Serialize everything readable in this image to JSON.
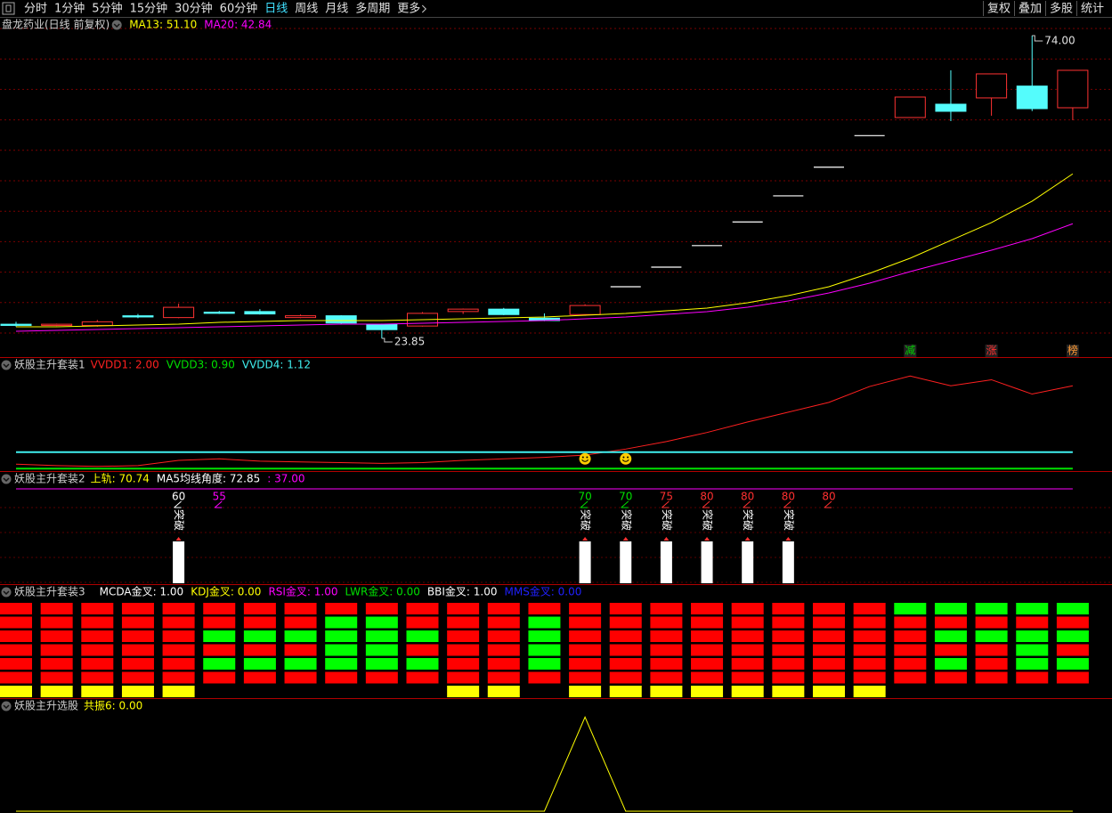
{
  "toolbar": {
    "tabs": [
      "分时",
      "1分钟",
      "5分钟",
      "15分钟",
      "30分钟",
      "60分钟",
      "日线",
      "周线",
      "月线",
      "多周期",
      "更多"
    ],
    "active": 6,
    "right": [
      "复权",
      "叠加",
      "多股",
      "统计"
    ]
  },
  "chart_data": [
    {
      "type": "candlestick",
      "title": "盘龙药业(日线 前复权)",
      "open": [
        26.2,
        26.0,
        26.0,
        27.6,
        27.3,
        28.2,
        28.3,
        27.3,
        27.6,
        26.2,
        25.9,
        28.3,
        28.7,
        27.2,
        27.8,
        32.41,
        35.65,
        39.22,
        43.14,
        47.46,
        52.21,
        57.43,
        60.43,
        62.64,
        63.68,
        65.64,
        62.05
      ],
      "close": [
        26.0,
        26.2,
        26.6,
        27.4,
        29.0,
        28.0,
        27.9,
        27.6,
        26.4,
        25.3,
        28.0,
        28.7,
        27.8,
        26.8,
        29.3,
        32.41,
        35.65,
        39.22,
        43.14,
        47.46,
        52.21,
        57.43,
        63.82,
        61.46,
        67.66,
        61.9,
        68.25
      ],
      "high": [
        26.6,
        26.3,
        26.9,
        27.9,
        29.6,
        28.4,
        28.7,
        27.8,
        27.7,
        26.3,
        28.2,
        28.8,
        28.9,
        28.0,
        29.5,
        32.41,
        35.65,
        39.22,
        43.14,
        47.46,
        52.21,
        57.43,
        63.82,
        68.25,
        67.66,
        74.0,
        68.25
      ],
      "low": [
        25.8,
        25.9,
        25.8,
        27.2,
        27.2,
        27.9,
        27.8,
        27.2,
        26.3,
        23.85,
        25.8,
        27.9,
        27.7,
        26.7,
        27.6,
        32.41,
        35.65,
        39.22,
        43.14,
        47.46,
        52.21,
        57.43,
        60.43,
        59.84,
        60.73,
        61.5,
        59.99
      ],
      "up_color": "#ff3232",
      "down_color": "#54fcfc",
      "flat_color": "#ffffff",
      "series": [
        {
          "name": "MA13: 51.10",
          "color": "#ffff00",
          "values": [
            25.77,
            25.77,
            25.92,
            26.06,
            26.21,
            26.51,
            26.65,
            26.8,
            26.8,
            26.8,
            26.95,
            27.1,
            27.24,
            27.39,
            27.69,
            27.98,
            28.42,
            28.87,
            29.75,
            30.93,
            32.41,
            34.62,
            37.13,
            40.08,
            43.03,
            46.57,
            51.1
          ]
        },
        {
          "name": "MA20: 42.84",
          "color": "#ff00ff",
          "values": [
            25.03,
            25.18,
            25.33,
            25.47,
            25.62,
            25.77,
            25.92,
            26.06,
            26.21,
            26.21,
            26.36,
            26.51,
            26.65,
            26.8,
            27.1,
            27.39,
            27.83,
            28.28,
            29.01,
            30.05,
            31.37,
            33.0,
            34.91,
            36.68,
            38.45,
            40.37,
            42.84
          ]
        }
      ],
      "annotations": [
        {
          "value": 74.0,
          "label": "74.00"
        },
        {
          "value": 23.85,
          "label": "23.85"
        }
      ],
      "marker_texts": [
        null,
        null,
        null,
        null,
        null,
        null,
        null,
        null,
        null,
        null,
        null,
        null,
        null,
        null,
        null,
        null,
        null,
        null,
        null,
        null,
        null,
        null,
        "减",
        null,
        "涨",
        null,
        "榜"
      ],
      "marker_colors": [
        null,
        null,
        null,
        null,
        null,
        null,
        null,
        null,
        null,
        null,
        null,
        null,
        null,
        null,
        null,
        null,
        null,
        null,
        null,
        null,
        null,
        null,
        "#00d000",
        null,
        "#ff3030",
        null,
        "#ff9933"
      ],
      "ylim": [
        21.2,
        76.65
      ],
      "grid": true
    },
    {
      "type": "line",
      "title": "妖股主升套装1",
      "series": [
        {
          "name": "VVDD1: 2.00",
          "color": "#ff2020",
          "values": [
            0.96,
            0.94,
            0.93,
            0.94,
            1.01,
            1.03,
            1.0,
            0.99,
            0.98,
            0.97,
            0.98,
            1.01,
            1.03,
            1.05,
            1.08,
            1.16,
            1.26,
            1.38,
            1.52,
            1.65,
            1.78,
            1.99,
            2.13,
            2.0,
            2.08,
            1.89,
            2.0
          ]
        },
        {
          "name": "VVDD3: 0.90",
          "color": "#00e000",
          "values": [
            0.9,
            0.9,
            0.9,
            0.9,
            0.9,
            0.9,
            0.9,
            0.9,
            0.9,
            0.9,
            0.9,
            0.9,
            0.9,
            0.9,
            0.9,
            0.9,
            0.9,
            0.9,
            0.9,
            0.9,
            0.9,
            0.9,
            0.9,
            0.9,
            0.9,
            0.9,
            0.9
          ]
        },
        {
          "name": "VVDD4: 1.12",
          "color": "#40f0f0",
          "values": [
            1.12,
            1.12,
            1.12,
            1.12,
            1.12,
            1.12,
            1.12,
            1.12,
            1.12,
            1.12,
            1.12,
            1.12,
            1.12,
            1.12,
            1.12,
            1.12,
            1.12,
            1.12,
            1.12,
            1.12,
            1.12,
            1.12,
            1.12,
            1.12,
            1.12,
            1.12,
            1.12
          ]
        }
      ],
      "smiles": [
        null,
        null,
        null,
        null,
        null,
        null,
        null,
        null,
        null,
        null,
        null,
        null,
        null,
        null,
        1.03,
        1.03,
        null,
        null,
        null,
        null,
        null,
        null,
        null,
        null,
        null,
        null,
        null
      ],
      "ylim": [
        0.88,
        2.18
      ]
    },
    {
      "type": "bar",
      "title": "妖股主升套装2",
      "legend": [
        {
          "text": "上轨: 70.74",
          "color": "#ffff00"
        },
        {
          "text": "MA5均线角度: 72.85",
          "color": "#ffffff"
        }
      ],
      "values": [
        null,
        null,
        null,
        null,
        1,
        null,
        null,
        null,
        null,
        null,
        null,
        null,
        null,
        null,
        1,
        1,
        1,
        1,
        1,
        1,
        null,
        null,
        null,
        null,
        null,
        null,
        null
      ],
      "color": "#ffffff",
      "ylim": [
        0,
        2.34
      ],
      "bar_text": "突破",
      "signal_values": [
        null,
        null,
        null,
        null,
        60,
        55,
        null,
        null,
        null,
        null,
        null,
        null,
        null,
        null,
        70,
        70,
        75,
        80,
        80,
        80,
        80,
        null,
        null,
        null,
        null,
        null,
        null
      ],
      "signal_colors": [
        null,
        null,
        null,
        null,
        "#ffffff",
        "#ff00ff",
        null,
        null,
        null,
        null,
        null,
        null,
        null,
        null,
        "#00e000",
        "#00e000",
        "#ff3030",
        "#ff3030",
        "#ff3030",
        "#ff3030",
        "#ff3030",
        null,
        null,
        null,
        null,
        null,
        null
      ],
      "series": [
        {
          "name": ": 37.00",
          "color": "#ff00ff",
          "axis": "y2",
          "values": [
            37,
            37,
            37,
            37,
            37,
            37,
            37,
            37,
            37,
            37,
            37,
            37,
            37,
            37,
            37,
            37,
            37,
            37,
            37,
            37,
            37,
            37,
            37,
            37,
            37,
            37,
            37
          ]
        }
      ],
      "y2lim": [
        0,
        38.4
      ],
      "grid": true
    },
    {
      "type": "heatmap",
      "title": "妖股主升套装3",
      "legend": [
        {
          "text": "MCDA金叉: 1.00",
          "color": "#ffffff"
        },
        {
          "text": "KDJ金叉: 0.00",
          "color": "#ffff00"
        },
        {
          "text": "RSI金叉: 1.00",
          "color": "#ff00ff"
        },
        {
          "text": "LWR金叉: 0.00",
          "color": "#00e000"
        },
        {
          "text": "BBI金叉: 1.00",
          "color": "#ffffff"
        },
        {
          "text": "MMS金叉: 0.00",
          "color": "#2020ff"
        }
      ],
      "cells": [
        [
          0,
          0,
          0,
          0,
          0,
          0,
          0,
          0,
          0,
          0,
          0,
          0,
          0,
          0,
          0,
          0,
          0,
          0,
          0,
          0,
          0,
          0,
          1,
          1,
          1,
          1,
          1
        ],
        [
          0,
          0,
          0,
          0,
          0,
          0,
          0,
          0,
          1,
          1,
          0,
          0,
          0,
          1,
          0,
          0,
          0,
          0,
          0,
          0,
          0,
          0,
          0,
          0,
          0,
          0,
          0
        ],
        [
          0,
          0,
          0,
          0,
          0,
          1,
          1,
          1,
          1,
          1,
          1,
          0,
          0,
          1,
          0,
          0,
          0,
          0,
          0,
          0,
          0,
          0,
          0,
          1,
          1,
          1,
          1
        ],
        [
          0,
          0,
          0,
          0,
          0,
          0,
          0,
          0,
          1,
          1,
          0,
          0,
          0,
          1,
          0,
          0,
          0,
          0,
          0,
          0,
          0,
          0,
          0,
          0,
          0,
          1,
          0
        ],
        [
          0,
          0,
          0,
          0,
          0,
          1,
          1,
          1,
          1,
          1,
          1,
          0,
          0,
          1,
          0,
          0,
          0,
          0,
          0,
          0,
          0,
          0,
          0,
          1,
          0,
          1,
          1
        ],
        [
          0,
          0,
          0,
          0,
          0,
          0,
          0,
          0,
          0,
          0,
          0,
          0,
          0,
          0,
          0,
          0,
          0,
          0,
          0,
          0,
          0,
          0,
          0,
          0,
          0,
          0,
          0
        ]
      ],
      "cell_colors": [
        "#ff0000",
        "#00ff00"
      ],
      "flags": [
        1,
        1,
        1,
        1,
        1,
        0,
        0,
        0,
        0,
        0,
        0,
        1,
        1,
        0,
        1,
        1,
        1,
        1,
        1,
        1,
        1,
        1,
        0,
        0,
        0,
        0,
        0
      ],
      "flag_color": "#ffff00"
    },
    {
      "type": "line",
      "title": "妖股主升选股",
      "series": [
        {
          "name": "共振6: 0.00",
          "color": "#ffff00",
          "values": [
            0,
            0,
            0,
            0,
            0,
            0,
            0,
            0,
            0,
            0,
            0,
            0,
            0,
            0,
            1,
            0,
            0,
            0,
            0,
            0,
            0,
            0,
            0,
            0,
            0,
            0,
            0
          ]
        }
      ],
      "ylim": [
        0,
        1.05
      ]
    }
  ]
}
